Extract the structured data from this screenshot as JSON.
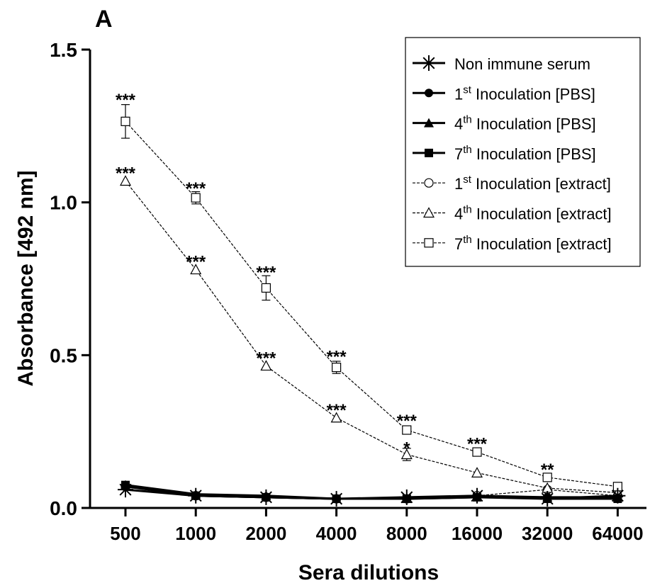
{
  "panel_label": "A",
  "chart_data": {
    "type": "line",
    "xlabel": "Sera dilutions",
    "ylabel": "Absorbance [492 nm]",
    "categories": [
      "500",
      "1000",
      "2000",
      "4000",
      "8000",
      "16000",
      "32000",
      "64000"
    ],
    "ylim": [
      0,
      1.5
    ],
    "yticks": [
      "0.0",
      "0.5",
      "1.0",
      "1.5"
    ],
    "ytick_values": [
      0,
      0.5,
      1.0,
      1.5
    ],
    "grid": false,
    "legend_position": "top-right",
    "series": [
      {
        "id": "nis",
        "name": "Non immune serum",
        "marker": "asterisk",
        "style": "solid",
        "values": [
          0.06,
          0.04,
          0.035,
          0.03,
          0.035,
          0.04,
          0.03,
          0.04
        ]
      },
      {
        "id": "pbs1",
        "name": "1st Inoculation [PBS]",
        "name_parts": [
          "1",
          "st",
          " Inoculation [PBS]"
        ],
        "marker": "circle-filled",
        "style": "solid",
        "values": [
          0.07,
          0.04,
          0.035,
          0.03,
          0.03,
          0.035,
          0.035,
          0.03
        ]
      },
      {
        "id": "pbs4",
        "name": "4th Inoculation [PBS]",
        "name_parts": [
          "4",
          "th",
          " Inoculation [PBS]"
        ],
        "marker": "triangle-filled",
        "style": "solid",
        "values": [
          0.075,
          0.045,
          0.04,
          0.03,
          0.03,
          0.04,
          0.035,
          0.035
        ]
      },
      {
        "id": "pbs7",
        "name": "7th Inoculation [PBS]",
        "name_parts": [
          "7",
          "th",
          " Inoculation [PBS]"
        ],
        "marker": "square-filled",
        "style": "solid",
        "values": [
          0.075,
          0.04,
          0.035,
          0.03,
          0.03,
          0.035,
          0.03,
          0.03
        ]
      },
      {
        "id": "ext1",
        "name": "1st Inoculation [extract]",
        "name_parts": [
          "1",
          "st",
          " Inoculation [extract]"
        ],
        "marker": "circle-open",
        "style": "dashed",
        "values": [
          0.07,
          0.04,
          0.035,
          0.03,
          0.03,
          0.04,
          0.06,
          0.04
        ]
      },
      {
        "id": "ext4",
        "name": "4th Inoculation [extract]",
        "name_parts": [
          "4",
          "th",
          " Inoculation [extract]"
        ],
        "marker": "triangle-open",
        "style": "dashed",
        "values": [
          1.07,
          0.78,
          0.465,
          0.295,
          0.175,
          0.115,
          0.065,
          0.05
        ],
        "errors": [
          0,
          0,
          0,
          0,
          0.02,
          0,
          0,
          0
        ]
      },
      {
        "id": "ext7",
        "name": "7th Inoculation [extract]",
        "name_parts": [
          "7",
          "th",
          " Inoculation [extract]"
        ],
        "marker": "square-open",
        "style": "dashed",
        "values": [
          1.265,
          1.015,
          0.72,
          0.46,
          0.255,
          0.183,
          0.1,
          0.07
        ],
        "errors": [
          0.055,
          0.02,
          0.04,
          0.02,
          0,
          0,
          0,
          0
        ]
      }
    ],
    "annotations": [
      {
        "category": "500",
        "y": 1.34,
        "text": "***"
      },
      {
        "category": "500",
        "y": 1.1,
        "text": "***"
      },
      {
        "category": "1000",
        "y": 1.05,
        "text": "***"
      },
      {
        "category": "1000",
        "y": 0.81,
        "text": "***"
      },
      {
        "category": "2000",
        "y": 0.775,
        "text": "***"
      },
      {
        "category": "2000",
        "y": 0.495,
        "text": "***"
      },
      {
        "category": "4000",
        "y": 0.5,
        "text": "***"
      },
      {
        "category": "4000",
        "y": 0.325,
        "text": "***"
      },
      {
        "category": "8000",
        "y": 0.29,
        "text": "***"
      },
      {
        "category": "8000",
        "y": 0.2,
        "text": "*"
      },
      {
        "category": "16000",
        "y": 0.215,
        "text": "***"
      },
      {
        "category": "32000",
        "y": 0.13,
        "text": "**"
      }
    ]
  }
}
